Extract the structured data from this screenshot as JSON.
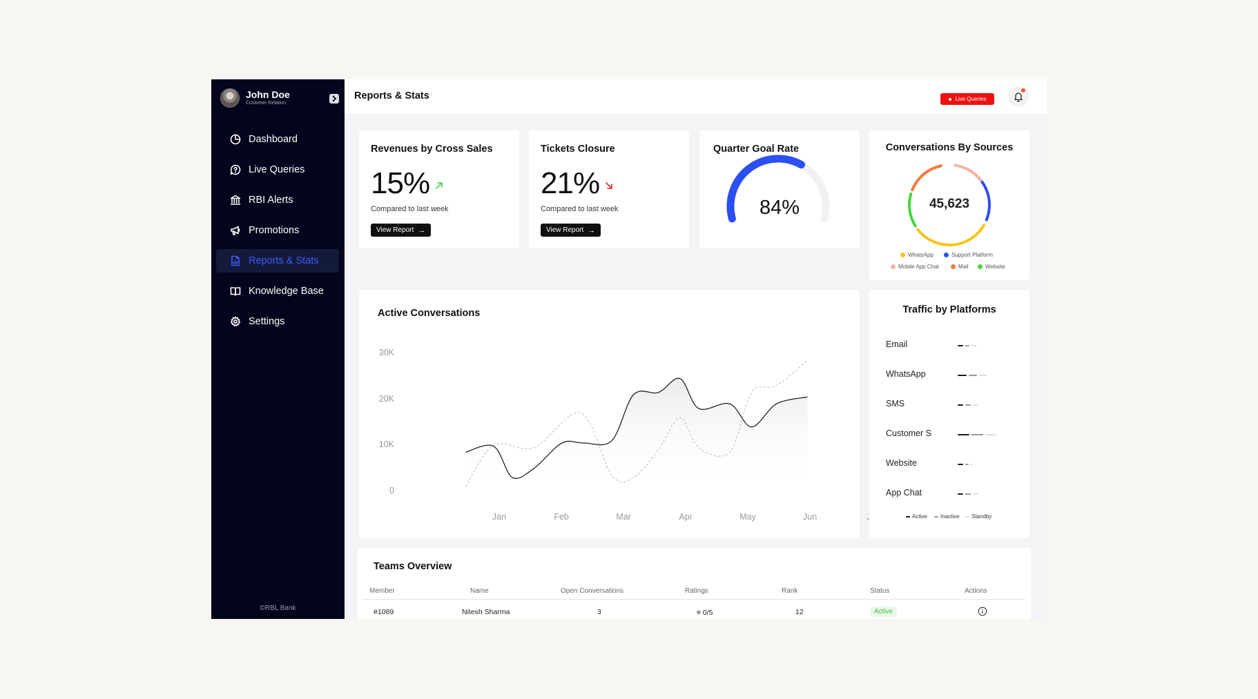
{
  "sidebar": {
    "profile": {
      "name": "John Doe",
      "role": "Customer Relation"
    },
    "nav": [
      {
        "label": "Dashboard",
        "icon": "dashboard-icon",
        "active": false
      },
      {
        "label": "Live Queries",
        "icon": "chat-question-icon",
        "active": false
      },
      {
        "label": "RBI Alerts",
        "icon": "bank-icon",
        "active": false
      },
      {
        "label": "Promotions",
        "icon": "megaphone-icon",
        "active": false
      },
      {
        "label": "Reports & Stats",
        "icon": "report-icon",
        "active": true
      },
      {
        "label": "Knowledge Base",
        "icon": "book-icon",
        "active": false
      },
      {
        "label": "Settings",
        "icon": "gear-icon",
        "active": false
      }
    ],
    "copyright": "©RBL Bank"
  },
  "header": {
    "title": "Reports & Stats",
    "live_badge": "Live Queries"
  },
  "cards": {
    "cross_sales": {
      "title": "Revenues by Cross Sales",
      "value": "15%",
      "trend": "up",
      "sub": "Compared to last week",
      "button": "View Report"
    },
    "tickets": {
      "title": "Tickets Closure",
      "value": "21%",
      "trend": "down",
      "sub": "Compared to last week",
      "button": "View Report"
    },
    "quarter_goal": {
      "title": "Quarter Goal Rate",
      "value": "84%",
      "fraction": 0.84
    },
    "sources": {
      "title": "Conversations By Sources",
      "total": "45,623",
      "legend": [
        {
          "label": "WhatsApp",
          "color": "#f7c417"
        },
        {
          "label": "Support Platform",
          "color": "#2f4ef0"
        },
        {
          "label": "Mobile App Chat",
          "color": "#f3b6a4"
        },
        {
          "label": "Mail",
          "color": "#f47a3a"
        },
        {
          "label": "Website",
          "color": "#44d63c"
        }
      ]
    }
  },
  "chart_data": {
    "type": "line",
    "title": "Active Conversations",
    "categories": [
      "Jan",
      "Feb",
      "Mar",
      "Apr",
      "May",
      "Jun",
      "Jul"
    ],
    "y_ticks": [
      "30K",
      "20K",
      "10K",
      "0"
    ],
    "ylim": [
      0,
      30000
    ],
    "grid": false,
    "series": [
      {
        "style": "solid",
        "x": [
          0.45,
          0.9,
          1.2,
          1.55,
          2.0,
          2.35,
          2.8,
          3.15,
          3.55,
          3.9,
          4.2,
          4.7,
          5.05,
          5.45,
          5.95
        ],
        "values": [
          8500,
          9800,
          3000,
          5000,
          10500,
          10500,
          11000,
          21000,
          21500,
          24500,
          18000,
          19000,
          14000,
          19000,
          20500
        ]
      },
      {
        "style": "dashed",
        "x": [
          0.45,
          0.9,
          1.55,
          2.3,
          2.8,
          3.15,
          3.55,
          3.9,
          4.2,
          4.7,
          5.05,
          5.45,
          5.95
        ],
        "values": [
          1000,
          10000,
          9500,
          17000,
          3500,
          3000,
          9000,
          16000,
          9500,
          8500,
          21500,
          23000,
          28500
        ]
      }
    ]
  },
  "traffic": {
    "title": "Traffic by Platforms",
    "platforms": [
      {
        "label": "Email",
        "active": 0.28,
        "inactive": 0.22,
        "standby": 0.24
      },
      {
        "label": "WhatsApp",
        "active": 0.48,
        "inactive": 0.44,
        "standby": 0.4
      },
      {
        "label": "SMS",
        "active": 0.3,
        "inactive": 0.3,
        "standby": 0.24
      },
      {
        "label": "Customer S",
        "active": 0.62,
        "inactive": 0.62,
        "standby": 0.52
      },
      {
        "label": "Website",
        "active": 0.3,
        "inactive": 0.18,
        "standby": 0.12
      },
      {
        "label": "App Chat",
        "active": 0.3,
        "inactive": 0.3,
        "standby": 0.3
      }
    ],
    "legend": [
      {
        "label": "Active",
        "color": "#1a1a1a"
      },
      {
        "label": "Inactive",
        "color": "#9a9a9a"
      },
      {
        "label": "Standby",
        "color": "#dcdcdc"
      }
    ]
  },
  "teams": {
    "title": "Teams Overview",
    "columns": [
      "Member",
      "Name",
      "Open Conversations",
      "Ratings",
      "Rank",
      "Status",
      "Actions"
    ],
    "rows": [
      {
        "member": "#1089",
        "name": "Nitesh Sharma",
        "open": "3",
        "rating": "0/5",
        "rank": "12",
        "status": "Active"
      }
    ]
  }
}
